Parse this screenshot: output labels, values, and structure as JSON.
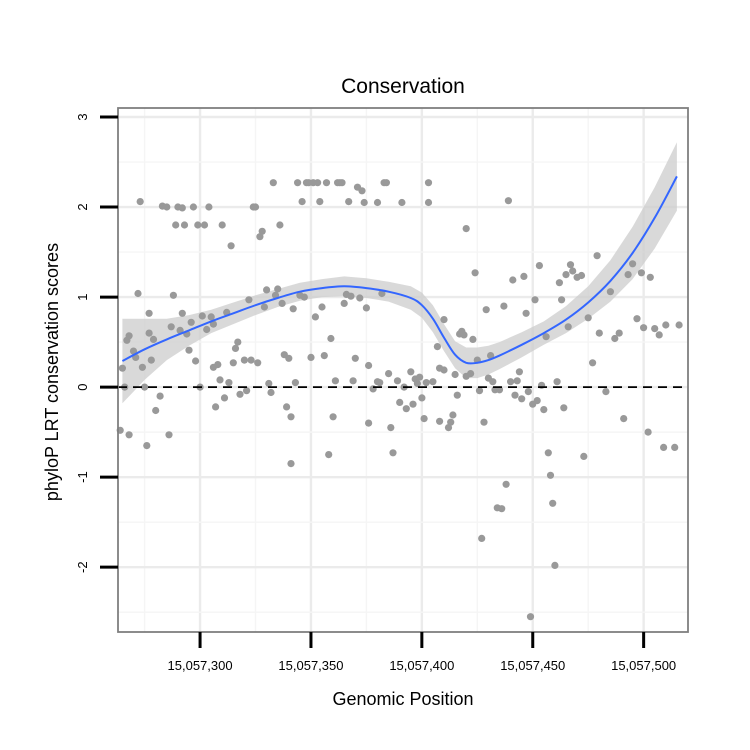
{
  "chart_data": {
    "type": "scatter",
    "title": "Conservation",
    "xlabel": "Genomic Position",
    "ylabel": "phyloP LRT conservation scores",
    "xlim": [
      15057263,
      15057520
    ],
    "ylim": [
      -2.72,
      3.1
    ],
    "x_ticks": [
      15057300,
      15057350,
      15057400,
      15057450,
      15057500
    ],
    "x_tick_labels": [
      "15,057,300",
      "15,057,350",
      "15,057,400",
      "15,057,450",
      "15,057,500"
    ],
    "y_ticks": [
      -2,
      -1,
      0,
      1,
      2,
      3
    ],
    "y_tick_labels": [
      "-2",
      "-1",
      "0",
      "1",
      "2",
      "3"
    ],
    "reference_line": {
      "y": 0,
      "style": "dashed"
    },
    "smooth": {
      "x": [
        15057265,
        15057275,
        15057285,
        15057295,
        15057305,
        15057315,
        15057325,
        15057335,
        15057345,
        15057355,
        15057365,
        15057375,
        15057385,
        15057395,
        15057400,
        15057405,
        15057410,
        15057415,
        15057420,
        15057425,
        15057430,
        15057435,
        15057445,
        15057455,
        15057465,
        15057475,
        15057485,
        15057495,
        15057505,
        15057515
      ],
      "y": [
        0.29,
        0.42,
        0.53,
        0.63,
        0.73,
        0.82,
        0.91,
        0.99,
        1.06,
        1.1,
        1.12,
        1.1,
        1.06,
        0.99,
        0.91,
        0.76,
        0.55,
        0.36,
        0.27,
        0.27,
        0.3,
        0.35,
        0.47,
        0.6,
        0.75,
        0.94,
        1.18,
        1.49,
        1.88,
        2.34
      ],
      "ci_lower": [
        -0.18,
        0.08,
        0.3,
        0.46,
        0.6,
        0.7,
        0.8,
        0.89,
        0.96,
        1.0,
        1.01,
        0.99,
        0.95,
        0.86,
        0.77,
        0.61,
        0.4,
        0.21,
        0.1,
        0.1,
        0.14,
        0.2,
        0.33,
        0.47,
        0.6,
        0.76,
        0.95,
        1.2,
        1.54,
        1.96
      ],
      "ci_upper": [
        0.76,
        0.76,
        0.76,
        0.8,
        0.86,
        0.94,
        1.02,
        1.09,
        1.16,
        1.2,
        1.23,
        1.21,
        1.17,
        1.12,
        1.05,
        0.91,
        0.7,
        0.51,
        0.44,
        0.44,
        0.46,
        0.5,
        0.61,
        0.73,
        0.9,
        1.12,
        1.41,
        1.78,
        2.22,
        2.72
      ]
    },
    "series": [
      {
        "name": "phyloP LRT",
        "points": [
          [
            15057264,
            -0.48
          ],
          [
            15057265,
            0.21
          ],
          [
            15057266,
            0.0
          ],
          [
            15057267,
            0.52
          ],
          [
            15057268,
            0.57
          ],
          [
            15057268,
            -0.53
          ],
          [
            15057270,
            0.4
          ],
          [
            15057271,
            0.33
          ],
          [
            15057272,
            1.04
          ],
          [
            15057273,
            2.06
          ],
          [
            15057274,
            0.22
          ],
          [
            15057275,
            0.0
          ],
          [
            15057276,
            -0.65
          ],
          [
            15057277,
            0.6
          ],
          [
            15057277,
            0.82
          ],
          [
            15057278,
            0.3
          ],
          [
            15057279,
            0.53
          ],
          [
            15057280,
            -0.26
          ],
          [
            15057282,
            -0.1
          ],
          [
            15057283,
            2.01
          ],
          [
            15057285,
            2.0
          ],
          [
            15057286,
            -0.53
          ],
          [
            15057287,
            0.67
          ],
          [
            15057288,
            1.02
          ],
          [
            15057289,
            1.8
          ],
          [
            15057290,
            2.0
          ],
          [
            15057291,
            0.63
          ],
          [
            15057292,
            0.82
          ],
          [
            15057292,
            1.99
          ],
          [
            15057293,
            1.8
          ],
          [
            15057294,
            0.59
          ],
          [
            15057295,
            0.41
          ],
          [
            15057296,
            0.72
          ],
          [
            15057297,
            2.0
          ],
          [
            15057298,
            0.29
          ],
          [
            15057299,
            1.8
          ],
          [
            15057300,
            0.0
          ],
          [
            15057301,
            0.79
          ],
          [
            15057302,
            1.8
          ],
          [
            15057303,
            0.64
          ],
          [
            15057304,
            2.0
          ],
          [
            15057305,
            0.78
          ],
          [
            15057306,
            0.7
          ],
          [
            15057306,
            0.22
          ],
          [
            15057307,
            -0.22
          ],
          [
            15057308,
            0.25
          ],
          [
            15057309,
            0.08
          ],
          [
            15057310,
            1.8
          ],
          [
            15057311,
            -0.12
          ],
          [
            15057312,
            0.83
          ],
          [
            15057313,
            0.05
          ],
          [
            15057314,
            1.57
          ],
          [
            15057315,
            0.27
          ],
          [
            15057316,
            0.43
          ],
          [
            15057317,
            0.5
          ],
          [
            15057318,
            -0.08
          ],
          [
            15057320,
            0.3
          ],
          [
            15057321,
            -0.04
          ],
          [
            15057322,
            0.97
          ],
          [
            15057323,
            0.3
          ],
          [
            15057324,
            2.0
          ],
          [
            15057325,
            2.0
          ],
          [
            15057326,
            0.27
          ],
          [
            15057327,
            1.67
          ],
          [
            15057328,
            1.73
          ],
          [
            15057329,
            0.89
          ],
          [
            15057330,
            1.08
          ],
          [
            15057331,
            0.04
          ],
          [
            15057332,
            -0.06
          ],
          [
            15057333,
            2.27
          ],
          [
            15057334,
            1.02
          ],
          [
            15057335,
            1.09
          ],
          [
            15057336,
            1.8
          ],
          [
            15057337,
            0.93
          ],
          [
            15057338,
            0.36
          ],
          [
            15057339,
            -0.22
          ],
          [
            15057340,
            0.32
          ],
          [
            15057341,
            -0.33
          ],
          [
            15057341,
            -0.85
          ],
          [
            15057342,
            0.87
          ],
          [
            15057343,
            0.05
          ],
          [
            15057344,
            2.27
          ],
          [
            15057345,
            1.02
          ],
          [
            15057346,
            2.06
          ],
          [
            15057347,
            1.0
          ],
          [
            15057348,
            2.27
          ],
          [
            15057349,
            2.27
          ],
          [
            15057350,
            0.33
          ],
          [
            15057351,
            2.27
          ],
          [
            15057352,
            0.78
          ],
          [
            15057353,
            2.27
          ],
          [
            15057354,
            2.06
          ],
          [
            15057355,
            0.89
          ],
          [
            15057356,
            0.35
          ],
          [
            15057357,
            2.27
          ],
          [
            15057358,
            -0.75
          ],
          [
            15057359,
            0.54
          ],
          [
            15057360,
            -0.33
          ],
          [
            15057361,
            0.07
          ],
          [
            15057362,
            2.27
          ],
          [
            15057363,
            2.27
          ],
          [
            15057364,
            2.27
          ],
          [
            15057365,
            0.93
          ],
          [
            15057366,
            1.03
          ],
          [
            15057367,
            2.06
          ],
          [
            15057368,
            1.01
          ],
          [
            15057369,
            0.07
          ],
          [
            15057370,
            0.32
          ],
          [
            15057371,
            2.22
          ],
          [
            15057372,
            0.99
          ],
          [
            15057373,
            2.18
          ],
          [
            15057374,
            2.05
          ],
          [
            15057375,
            0.88
          ],
          [
            15057376,
            -0.4
          ],
          [
            15057376,
            0.24
          ],
          [
            15057378,
            -0.02
          ],
          [
            15057380,
            0.06
          ],
          [
            15057380,
            2.05
          ],
          [
            15057381,
            0.05
          ],
          [
            15057382,
            1.04
          ],
          [
            15057383,
            2.27
          ],
          [
            15057384,
            2.27
          ],
          [
            15057385,
            0.15
          ],
          [
            15057386,
            -0.45
          ],
          [
            15057387,
            -0.73
          ],
          [
            15057389,
            0.07
          ],
          [
            15057390,
            -0.17
          ],
          [
            15057391,
            2.05
          ],
          [
            15057392,
            0.0
          ],
          [
            15057393,
            -0.24
          ],
          [
            15057395,
            0.17
          ],
          [
            15057396,
            -0.19
          ],
          [
            15057397,
            0.09
          ],
          [
            15057398,
            0.04
          ],
          [
            15057399,
            0.11
          ],
          [
            15057400,
            -0.12
          ],
          [
            15057401,
            -0.35
          ],
          [
            15057402,
            0.05
          ],
          [
            15057403,
            2.27
          ],
          [
            15057403,
            2.05
          ],
          [
            15057405,
            0.06
          ],
          [
            15057407,
            0.45
          ],
          [
            15057408,
            0.21
          ],
          [
            15057408,
            -0.38
          ],
          [
            15057410,
            0.19
          ],
          [
            15057410,
            0.75
          ],
          [
            15057412,
            -0.45
          ],
          [
            15057413,
            -0.39
          ],
          [
            15057414,
            -0.31
          ],
          [
            15057415,
            0.14
          ],
          [
            15057416,
            -0.09
          ],
          [
            15057417,
            0.59
          ],
          [
            15057418,
            0.62
          ],
          [
            15057419,
            0.58
          ],
          [
            15057420,
            0.12
          ],
          [
            15057420,
            1.76
          ],
          [
            15057422,
            0.15
          ],
          [
            15057423,
            0.53
          ],
          [
            15057424,
            1.27
          ],
          [
            15057425,
            0.3
          ],
          [
            15057426,
            -0.04
          ],
          [
            15057427,
            -1.68
          ],
          [
            15057428,
            -0.39
          ],
          [
            15057429,
            0.86
          ],
          [
            15057430,
            0.1
          ],
          [
            15057431,
            0.35
          ],
          [
            15057432,
            0.06
          ],
          [
            15057433,
            -0.03
          ],
          [
            15057434,
            -1.34
          ],
          [
            15057435,
            -0.03
          ],
          [
            15057436,
            -1.35
          ],
          [
            15057437,
            0.9
          ],
          [
            15057438,
            -1.08
          ],
          [
            15057439,
            2.07
          ],
          [
            15057440,
            0.06
          ],
          [
            15057441,
            1.19
          ],
          [
            15057442,
            -0.09
          ],
          [
            15057443,
            0.07
          ],
          [
            15057444,
            0.17
          ],
          [
            15057445,
            -0.13
          ],
          [
            15057446,
            1.23
          ],
          [
            15057447,
            0.82
          ],
          [
            15057448,
            -0.05
          ],
          [
            15057449,
            -2.55
          ],
          [
            15057450,
            -0.19
          ],
          [
            15057451,
            0.97
          ],
          [
            15057452,
            -0.15
          ],
          [
            15057453,
            1.35
          ],
          [
            15057454,
            0.02
          ],
          [
            15057455,
            -0.25
          ],
          [
            15057456,
            0.56
          ],
          [
            15057457,
            -0.73
          ],
          [
            15057458,
            -0.98
          ],
          [
            15057459,
            -1.29
          ],
          [
            15057460,
            -1.98
          ],
          [
            15057461,
            0.06
          ],
          [
            15057462,
            1.16
          ],
          [
            15057463,
            0.97
          ],
          [
            15057464,
            -0.23
          ],
          [
            15057465,
            1.25
          ],
          [
            15057466,
            0.67
          ],
          [
            15057467,
            1.36
          ],
          [
            15057468,
            1.29
          ],
          [
            15057470,
            1.22
          ],
          [
            15057472,
            1.24
          ],
          [
            15057473,
            -0.77
          ],
          [
            15057475,
            0.77
          ],
          [
            15057477,
            0.27
          ],
          [
            15057479,
            1.46
          ],
          [
            15057480,
            0.6
          ],
          [
            15057483,
            -0.05
          ],
          [
            15057485,
            1.06
          ],
          [
            15057487,
            0.54
          ],
          [
            15057489,
            0.6
          ],
          [
            15057491,
            -0.35
          ],
          [
            15057493,
            1.25
          ],
          [
            15057495,
            1.37
          ],
          [
            15057497,
            0.76
          ],
          [
            15057499,
            1.27
          ],
          [
            15057500,
            0.66
          ],
          [
            15057502,
            -0.5
          ],
          [
            15057503,
            1.22
          ],
          [
            15057505,
            0.65
          ],
          [
            15057507,
            0.58
          ],
          [
            15057509,
            -0.67
          ],
          [
            15057510,
            0.69
          ],
          [
            15057514,
            -0.67
          ],
          [
            15057516,
            0.69
          ]
        ]
      }
    ]
  }
}
